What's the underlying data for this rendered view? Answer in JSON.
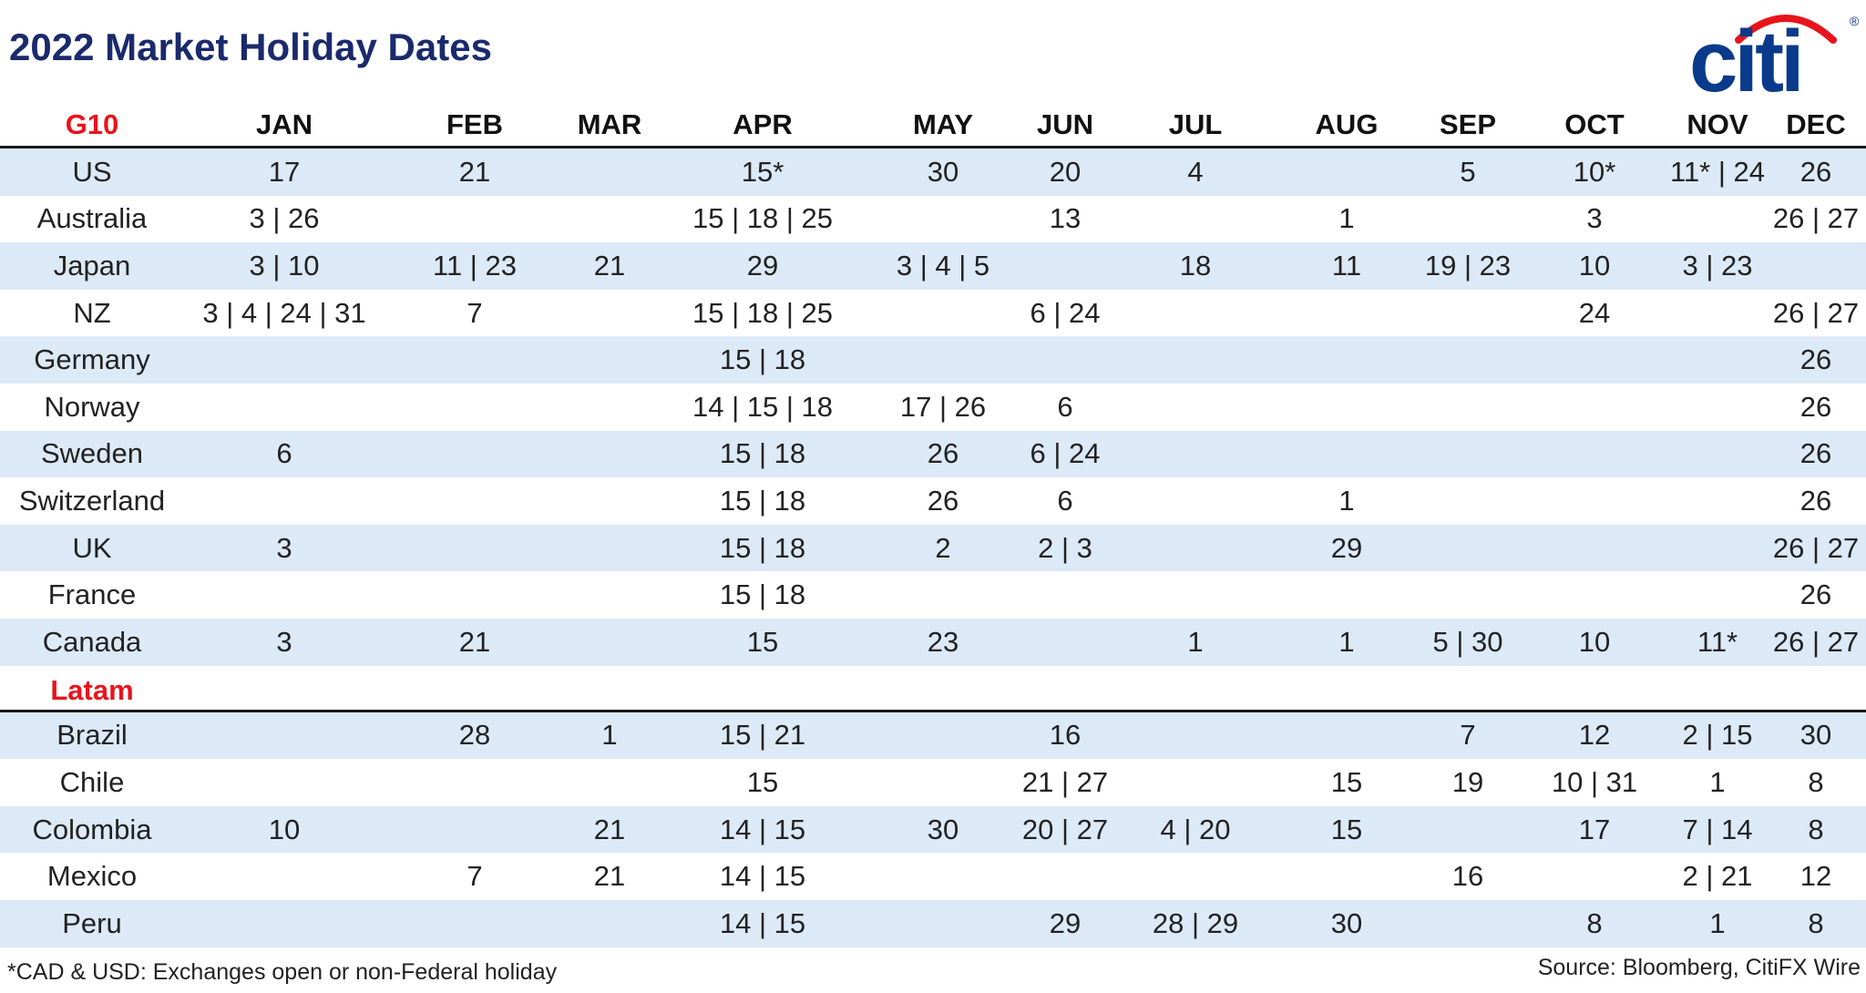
{
  "title": "2022 Market Holiday Dates",
  "logo": {
    "text": "citi",
    "registered_mark": "®",
    "text_color": "#0a3a8c",
    "arc_color": "#e8141c"
  },
  "columns": [
    "JAN",
    "FEB",
    "MAR",
    "APR",
    "MAY",
    "JUN",
    "JUL",
    "AUG",
    "SEP",
    "OCT",
    "NOV",
    "DEC"
  ],
  "groups": [
    {
      "label": "G10",
      "rows": [
        {
          "country": "US",
          "cells": [
            "17",
            "21",
            "",
            "15*",
            "30",
            "20",
            "4",
            "",
            "5",
            "10*",
            "11* | 24",
            "26"
          ]
        },
        {
          "country": "Australia",
          "cells": [
            "3 | 26",
            "",
            "",
            "15 | 18 | 25",
            "",
            "13",
            "",
            "1",
            "",
            "3",
            "",
            "26 | 27"
          ]
        },
        {
          "country": "Japan",
          "cells": [
            "3 | 10",
            "11 | 23",
            "21",
            "29",
            "3 | 4 | 5",
            "",
            "18",
            "11",
            "19 | 23",
            "10",
            "3 | 23",
            ""
          ]
        },
        {
          "country": "NZ",
          "cells": [
            "3 | 4 | 24 | 31",
            "7",
            "",
            "15 | 18 | 25",
            "",
            "6 | 24",
            "",
            "",
            "",
            "24",
            "",
            "26 | 27"
          ]
        },
        {
          "country": "Germany",
          "cells": [
            "",
            "",
            "",
            "15 | 18",
            "",
            "",
            "",
            "",
            "",
            "",
            "",
            "26"
          ]
        },
        {
          "country": "Norway",
          "cells": [
            "",
            "",
            "",
            "14 | 15 | 18",
            "17 | 26",
            "6",
            "",
            "",
            "",
            "",
            "",
            "26"
          ]
        },
        {
          "country": "Sweden",
          "cells": [
            "6",
            "",
            "",
            "15 | 18",
            "26",
            "6 | 24",
            "",
            "",
            "",
            "",
            "",
            "26"
          ]
        },
        {
          "country": "Switzerland",
          "cells": [
            "",
            "",
            "",
            "15 | 18",
            "26",
            "6",
            "",
            "1",
            "",
            "",
            "",
            "26"
          ]
        },
        {
          "country": "UK",
          "cells": [
            "3",
            "",
            "",
            "15 | 18",
            "2",
            "2 | 3",
            "",
            "29",
            "",
            "",
            "",
            "26 | 27"
          ]
        },
        {
          "country": "France",
          "cells": [
            "",
            "",
            "",
            "15 | 18",
            "",
            "",
            "",
            "",
            "",
            "",
            "",
            "26"
          ]
        },
        {
          "country": "Canada",
          "cells": [
            "3",
            "21",
            "",
            "15",
            "23",
            "",
            "1",
            "1",
            "5 | 30",
            "10",
            "11*",
            "26 | 27"
          ]
        }
      ]
    },
    {
      "label": "Latam",
      "rows": [
        {
          "country": "Brazil",
          "cells": [
            "",
            "28",
            "1",
            "15 | 21",
            "",
            "16",
            "",
            "",
            "7",
            "12",
            "2 | 15",
            "30"
          ]
        },
        {
          "country": "Chile",
          "cells": [
            "",
            "",
            "",
            "15",
            "",
            "21 | 27",
            "",
            "15",
            "19",
            "10 | 31",
            "1",
            "8"
          ]
        },
        {
          "country": "Colombia",
          "cells": [
            "10",
            "",
            "21",
            "14 | 15",
            "30",
            "20 | 27",
            "4 | 20",
            "15",
            "",
            "17",
            "7 | 14",
            "8"
          ]
        },
        {
          "country": "Mexico",
          "cells": [
            "",
            "7",
            "21",
            "14 | 15",
            "",
            "",
            "",
            "",
            "16",
            "",
            "2 | 21",
            "12"
          ]
        },
        {
          "country": "Peru",
          "cells": [
            "",
            "",
            "",
            "14 | 15",
            "",
            "29",
            "28 | 29",
            "30",
            "",
            "8",
            "1",
            "8"
          ]
        }
      ]
    }
  ],
  "footnote": "*CAD & USD: Exchanges open or non-Federal holiday",
  "source": "Source: Bloomberg, CitiFX Wire",
  "colors": {
    "title": "#1a2a6c",
    "group_label": "#e8141c",
    "row_shade": "#dce9f6"
  }
}
